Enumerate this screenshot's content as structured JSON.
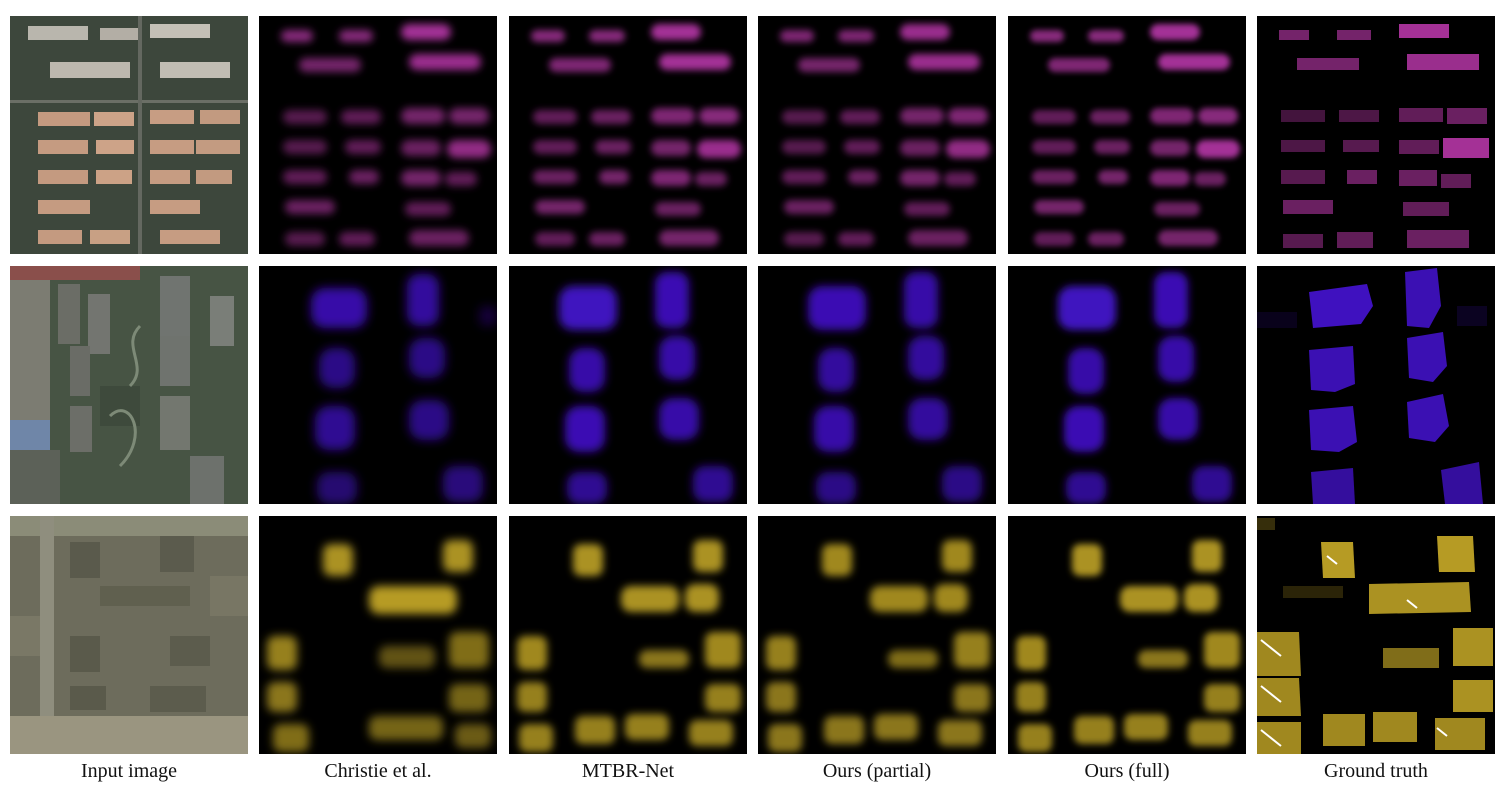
{
  "figure": {
    "columns": [
      {
        "label": "Input image"
      },
      {
        "label": "Christie et al."
      },
      {
        "label": "MTBR-Net"
      },
      {
        "label": "Ours (partial)"
      },
      {
        "label": "Ours (full)"
      },
      {
        "label": "Ground truth"
      }
    ],
    "rows": [
      {
        "name": "row-1",
        "hue": "#c13ab0",
        "image_kind": "urban-aerial"
      },
      {
        "name": "row-2",
        "hue": "#4a14e0",
        "image_kind": "park-aerial"
      },
      {
        "name": "row-3",
        "hue": "#d6b62a",
        "image_kind": "suburban-aerial"
      }
    ]
  }
}
